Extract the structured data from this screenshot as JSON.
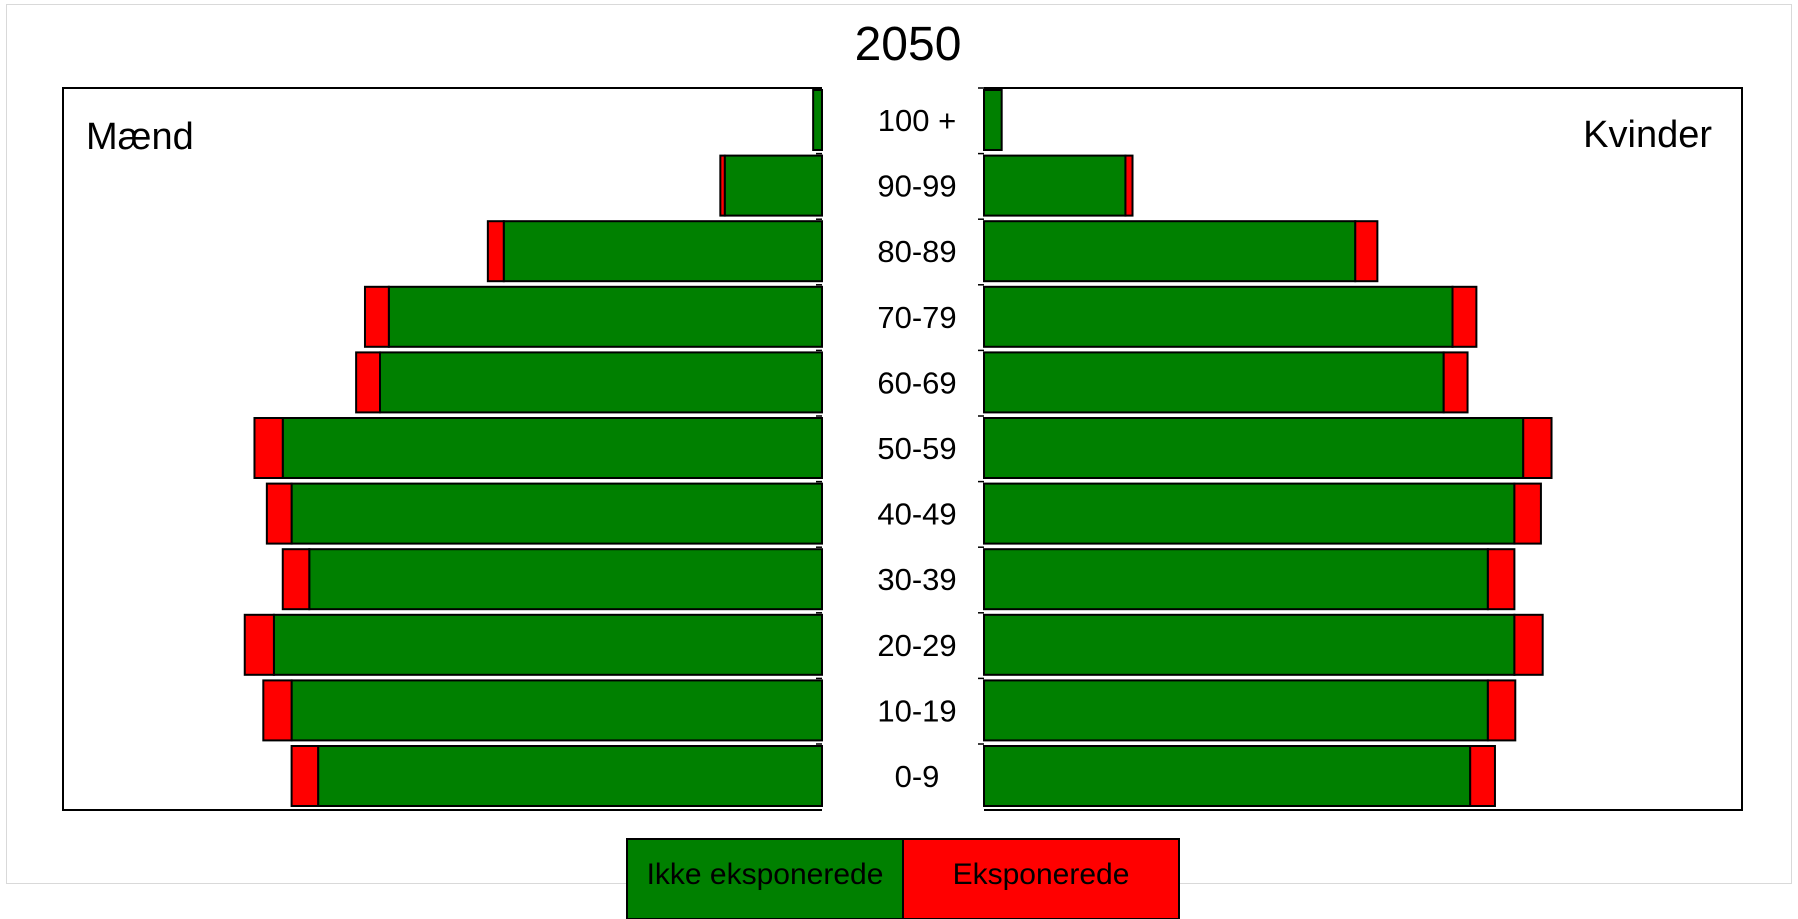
{
  "chart_data": {
    "type": "bar",
    "subtype": "population-pyramid",
    "title": "2050",
    "left_panel_label": "Mænd",
    "right_panel_label": "Kvinder",
    "categories": [
      "100 +",
      "90-99",
      "80-89",
      "70-79",
      "60-69",
      "50-59",
      "40-49",
      "30-39",
      "20-29",
      "10-19",
      "0-9"
    ],
    "stacked": true,
    "series": [
      {
        "name": "Ikke eksponerede",
        "color": "#008000",
        "values": {
          "maend": [
            1,
            11,
            36,
            49,
            50,
            61,
            60,
            58,
            62,
            60,
            57
          ],
          "kvinder": [
            2,
            16,
            42,
            53,
            52,
            61,
            60,
            57,
            60,
            57,
            55
          ]
        }
      },
      {
        "name": "Eksponerede",
        "color": "#ff0000",
        "values": {
          "maend": [
            0,
            0.5,
            1.8,
            2.7,
            2.7,
            3.2,
            2.8,
            3.0,
            3.3,
            3.2,
            3.0
          ],
          "kvinder": [
            0,
            0.8,
            2.5,
            2.7,
            2.7,
            3.2,
            3.0,
            3.0,
            3.2,
            3.1,
            2.8
          ]
        }
      }
    ],
    "legend": {
      "position": "bottom-center"
    },
    "grid": false
  }
}
